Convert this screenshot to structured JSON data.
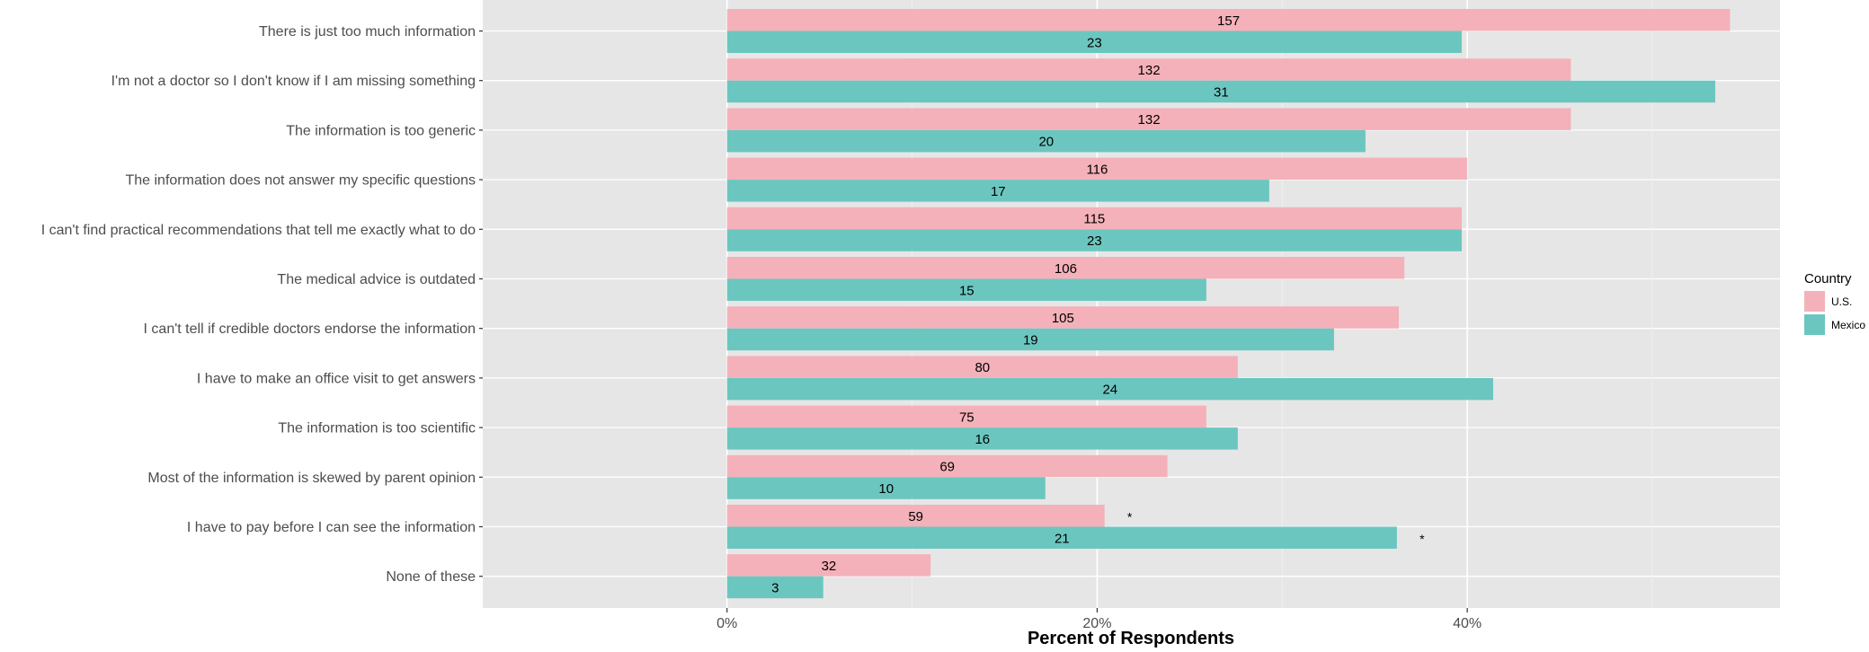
{
  "chart_data": {
    "type": "bar",
    "orientation": "horizontal",
    "title": "",
    "xlabel": "Percent of Respondents",
    "ylabel": "",
    "xlim": [
      -0.132,
      0.569
    ],
    "x_ticks": [
      {
        "value": 0,
        "label": "0%"
      },
      {
        "value": 0.2,
        "label": "20%"
      },
      {
        "value": 0.4,
        "label": "40%"
      }
    ],
    "minor_gridlines": [
      0.1,
      0.3,
      0.5
    ],
    "grid": true,
    "legend": {
      "title": "Country",
      "position": "right"
    },
    "categories": [
      "There is just too much information",
      "I'm not a doctor so I don't know if I am missing something",
      "The information is too generic",
      "The information does not answer my specific questions",
      "I can't find practical recommendations that tell me exactly what to do",
      "The medical advice is outdated",
      "I can't tell if credible doctors endorse the information",
      "I have to make an office visit to get answers",
      "The information is too scientific",
      "Most of the information is skewed by parent opinion",
      "I have to pay before I can see the information",
      "None of these"
    ],
    "series": [
      {
        "name": "U.S.",
        "color": "#f4b1b9",
        "values": [
          0.542,
          0.456,
          0.456,
          0.4,
          0.397,
          0.366,
          0.363,
          0.276,
          0.259,
          0.238,
          0.204,
          0.11
        ],
        "counts": [
          "157",
          "132",
          "132",
          "116",
          "115",
          "106",
          "105",
          "80",
          "75",
          "69",
          "59",
          "32"
        ],
        "annotations": [
          "",
          "",
          "",
          "",
          "",
          "",
          "",
          "",
          "",
          "",
          "*",
          ""
        ]
      },
      {
        "name": "Mexico",
        "color": "#6cc6c0",
        "values": [
          0.397,
          0.534,
          0.345,
          0.293,
          0.397,
          0.259,
          0.328,
          0.414,
          0.276,
          0.172,
          0.362,
          0.052
        ],
        "counts": [
          "23",
          "31",
          "20",
          "17",
          "23",
          "15",
          "19",
          "24",
          "16",
          "10",
          "21",
          "3"
        ],
        "annotations": [
          "",
          "",
          "",
          "",
          "",
          "",
          "",
          "",
          "",
          "",
          "*",
          ""
        ]
      }
    ]
  }
}
